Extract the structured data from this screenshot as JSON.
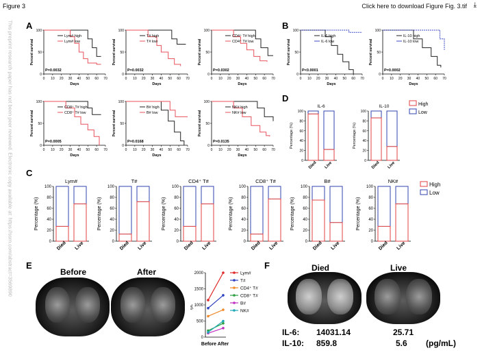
{
  "header": {
    "figure_title": "Figure 3",
    "download_link": "Click here to download Figure Fig. 3.tif",
    "download_icon": "download-icon"
  },
  "side_watermark": "This preprint research paper has not been peer reviewed. Electronic copy available at: https://ssrn.com/abstract=3569890",
  "panel_letters": {
    "A": "A",
    "B": "B",
    "C": "C",
    "D": "D",
    "E": "E",
    "F": "F"
  },
  "colors": {
    "high": "#222222",
    "low": "#e8505b",
    "b_low": "#3b49c4",
    "bar_high": "#e04040",
    "bar_low": "#3040b0"
  },
  "survival_common": {
    "ylabel": "Percent survival",
    "xlabel": "Days",
    "xticks": [
      "0",
      "10",
      "20",
      "30",
      "40",
      "50",
      "60",
      "70"
    ],
    "yticks": [
      "0",
      "50",
      "100"
    ]
  },
  "survival_panels": [
    {
      "legend_high": "Lym# high",
      "legend_low": "Lym# low",
      "pvalue": "P=0.0032",
      "group": "A"
    },
    {
      "legend_high": "T# high",
      "legend_low": "T# low",
      "pvalue": "P=0.0032",
      "group": "A"
    },
    {
      "legend_high": "CD4⁺ T# high",
      "legend_low": "CD4⁺ T# low",
      "pvalue": "P=0.0302",
      "group": "A"
    },
    {
      "legend_high": "IL-6 high",
      "legend_low": "IL-6 low",
      "pvalue": "P<0.0001",
      "group": "B"
    },
    {
      "legend_high": "IL-10 high",
      "legend_low": "IL-10 low",
      "pvalue": "P=0.0002",
      "group": "B"
    },
    {
      "legend_high": "CD8⁺ T# high",
      "legend_low": "CD8⁺ T# low",
      "pvalue": "P=0.0005",
      "group": "A"
    },
    {
      "legend_high": "B# high",
      "legend_low": "B# low",
      "pvalue": "P=0.0168",
      "group": "A"
    },
    {
      "legend_high": "NK# high",
      "legend_low": "NK# low",
      "pvalue": "P=0.0135",
      "group": "A"
    }
  ],
  "bar_common": {
    "ylabel": "Percentage (%)",
    "categories": [
      "Died",
      "Live"
    ],
    "yticks": [
      "0",
      "20",
      "40",
      "60",
      "80",
      "100"
    ],
    "legend_high": "High",
    "legend_low": "Low"
  },
  "chart_data": [
    {
      "type": "bar",
      "title": "IL-6",
      "categories": [
        "Died",
        "Live"
      ],
      "ylim": [
        0,
        100
      ],
      "ylabel": "Percentage (%)",
      "series": [
        {
          "name": "High",
          "values": [
            94,
            22
          ]
        },
        {
          "name": "Low",
          "values": [
            6,
            78
          ]
        }
      ]
    },
    {
      "type": "bar",
      "title": "IL-10",
      "categories": [
        "Died",
        "Live"
      ],
      "ylim": [
        0,
        100
      ],
      "ylabel": "Percentage (%)",
      "series": [
        {
          "name": "High",
          "values": [
            86,
            28
          ]
        },
        {
          "name": "Low",
          "values": [
            14,
            72
          ]
        }
      ]
    },
    {
      "type": "bar",
      "title": "Lym#",
      "categories": [
        "Died",
        "Live"
      ],
      "ylim": [
        0,
        100
      ],
      "ylabel": "Percentage (%)",
      "series": [
        {
          "name": "High",
          "values": [
            27,
            68
          ]
        },
        {
          "name": "Low",
          "values": [
            73,
            32
          ]
        }
      ]
    },
    {
      "type": "bar",
      "title": "T#",
      "categories": [
        "Died",
        "Live"
      ],
      "ylim": [
        0,
        100
      ],
      "ylabel": "Percentage (%)",
      "series": [
        {
          "name": "High",
          "values": [
            13,
            72
          ]
        },
        {
          "name": "Low",
          "values": [
            87,
            28
          ]
        }
      ]
    },
    {
      "type": "bar",
      "title": "CD4⁺ T#",
      "categories": [
        "Died",
        "Live"
      ],
      "ylim": [
        0,
        100
      ],
      "ylabel": "Percentage (%)",
      "series": [
        {
          "name": "High",
          "values": [
            27,
            68
          ]
        },
        {
          "name": "Low",
          "values": [
            73,
            32
          ]
        }
      ]
    },
    {
      "type": "bar",
      "title": "CD8⁺ T#",
      "categories": [
        "Died",
        "Live"
      ],
      "ylim": [
        0,
        100
      ],
      "ylabel": "Percentage (%)",
      "series": [
        {
          "name": "High",
          "values": [
            13,
            77
          ]
        },
        {
          "name": "Low",
          "values": [
            87,
            23
          ]
        }
      ]
    },
    {
      "type": "bar",
      "title": "B#",
      "categories": [
        "Died",
        "Live"
      ],
      "ylim": [
        0,
        100
      ],
      "ylabel": "Percentage (%)",
      "series": [
        {
          "name": "High",
          "values": [
            75,
            34
          ]
        },
        {
          "name": "Low",
          "values": [
            25,
            66
          ]
        }
      ]
    },
    {
      "type": "bar",
      "title": "NK#",
      "categories": [
        "Died",
        "Live"
      ],
      "ylim": [
        0,
        100
      ],
      "ylabel": "Percentage (%)",
      "series": [
        {
          "name": "High",
          "values": [
            27,
            68
          ]
        },
        {
          "name": "Low",
          "values": [
            73,
            32
          ]
        }
      ]
    },
    {
      "type": "line",
      "title": "",
      "xlabel": "",
      "ylabel": "/μL",
      "categories": [
        "Before",
        "After"
      ],
      "ylim": [
        0,
        2000
      ],
      "yticks": [
        "0",
        "500",
        "1000",
        "1500",
        "2000"
      ],
      "series": [
        {
          "name": "Lym#",
          "color": "#e02828",
          "values": [
            1150,
            2000
          ]
        },
        {
          "name": "T#",
          "color": "#2a40c0",
          "values": [
            900,
            1300
          ]
        },
        {
          "name": "CD4⁺ T#",
          "color": "#f08a2a",
          "values": [
            650,
            850
          ]
        },
        {
          "name": "CD8⁺ T#",
          "color": "#2aa040",
          "values": [
            200,
            430
          ]
        },
        {
          "name": "B#",
          "color": "#c030c0",
          "values": [
            120,
            280
          ]
        },
        {
          "name": "NK#",
          "color": "#20a8b8",
          "values": [
            150,
            500
          ]
        }
      ]
    }
  ],
  "panel_e": {
    "before_label": "Before",
    "after_label": "After",
    "xlabel_combined": "Before After"
  },
  "panel_f": {
    "died_label": "Died",
    "live_label": "Live",
    "il6_label": "IL-6:",
    "il10_label": "IL-10:",
    "died_il6": "14031.14",
    "died_il10": "859.8",
    "live_il6": "25.71",
    "live_il10": "5.6",
    "unit": "(pg/mL)"
  }
}
